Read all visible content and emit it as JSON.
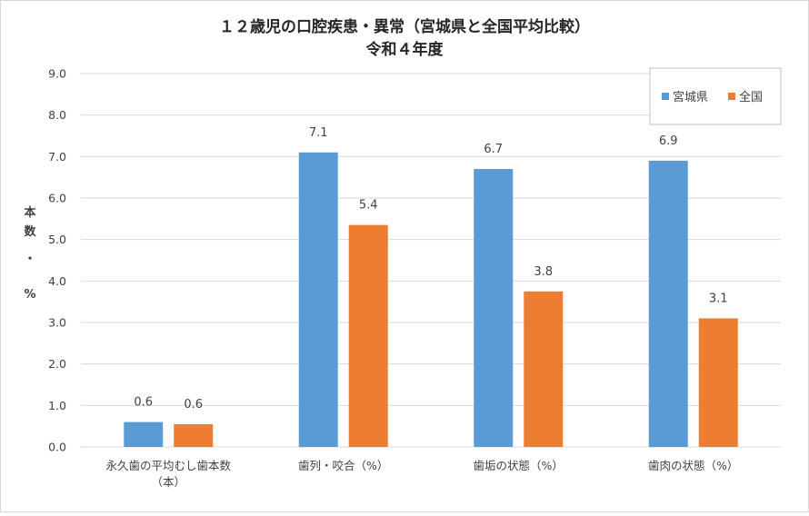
{
  "chart_data": {
    "type": "bar",
    "title": [
      "１２歳児の口腔疾患・異常（宮城県と全国平均比較）",
      "令和４年度"
    ],
    "ylabel": [
      "本",
      "数",
      "・",
      "%"
    ],
    "xlabel": "",
    "ylim": [
      0,
      9
    ],
    "ytick_step": 1,
    "yticks": [
      "0.0",
      "1.0",
      "2.0",
      "3.0",
      "4.0",
      "5.0",
      "6.0",
      "7.0",
      "8.0",
      "9.0"
    ],
    "grid": true,
    "legend_position": "top-right",
    "categories": [
      [
        "永久歯の平均むし歯本数",
        "（本）"
      ],
      [
        "歯列・咬合（%）"
      ],
      [
        "歯垢の状態（%）"
      ],
      [
        "歯肉の状態（%）"
      ]
    ],
    "series": [
      {
        "name": "宮城県",
        "color": "#5b9bd5",
        "values": [
          0.6,
          7.1,
          6.7,
          6.9
        ],
        "labels": [
          "0.6",
          "7.1",
          "6.7",
          "6.9"
        ]
      },
      {
        "name": "全国",
        "color": "#ed7d31",
        "values": [
          0.55,
          5.35,
          3.75,
          3.1
        ],
        "labels": [
          "0.6",
          "5.4",
          "3.8",
          "3.1"
        ]
      }
    ]
  }
}
